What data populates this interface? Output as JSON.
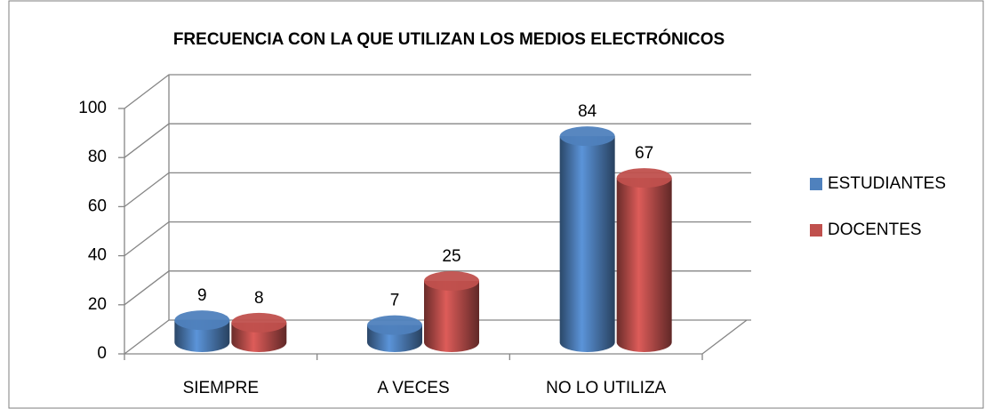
{
  "chart_data": {
    "type": "bar3d",
    "title": "FRECUENCIA CON LA QUE UTILIZAN LOS MEDIOS ELECTRÓNICOS",
    "categories": [
      "SIEMPRE",
      "A VECES",
      "NO LO UTILIZA"
    ],
    "series": [
      {
        "name": "ESTUDIANTES",
        "color": "#4f81bd",
        "values": [
          9,
          7,
          84
        ]
      },
      {
        "name": "DOCENTES",
        "color": "#c0504d",
        "values": [
          8,
          25,
          67
        ]
      }
    ],
    "ylim": [
      0,
      100
    ],
    "yticks": [
      0,
      20,
      40,
      60,
      80,
      100
    ],
    "grid": true,
    "legend": "right"
  }
}
